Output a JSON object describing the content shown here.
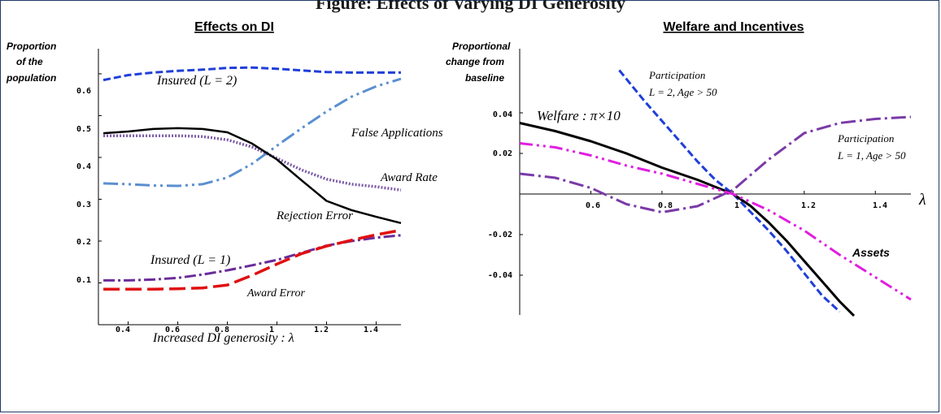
{
  "page_title": "Figure: Effects of Varying DI Generosity",
  "colors": {
    "insured_l2": "#1f3fd8",
    "false_applications": "#5b8fd0",
    "award_rate": "#7b5aa6",
    "rejection_error": "#000000",
    "insured_l1": "#6a2c9a",
    "award_error": "#e01010",
    "participation_l2": "#1f3fd8",
    "participation_l1": "#7a3aa8",
    "welfare": "#000000",
    "assets": "#e01ee0"
  },
  "chart_data": [
    {
      "type": "line",
      "title": "Effects on DI",
      "ylabel": [
        "Proportion",
        "of the",
        "population"
      ],
      "xlabel": "Increased DI generosity : λ",
      "xlim": [
        0.28,
        1.5
      ],
      "ylim": [
        0.0,
        0.66
      ],
      "xticks": [
        "0.4",
        "0.6",
        "0.8",
        "1",
        "1.2",
        "1.4"
      ],
      "yticks": [
        "0.1",
        "0.2",
        "0.3",
        "0.4",
        "0.5",
        "0.6"
      ],
      "x": [
        0.3,
        0.4,
        0.5,
        0.6,
        0.7,
        0.8,
        0.9,
        1.0,
        1.1,
        1.2,
        1.3,
        1.4,
        1.5
      ],
      "series": [
        {
          "key": "insured_l2",
          "label": "Insured (L = 2)",
          "dash": "9 4",
          "width": 3,
          "values": [
            0.585,
            0.597,
            0.603,
            0.607,
            0.61,
            0.614,
            0.615,
            0.612,
            0.608,
            0.604,
            0.603,
            0.603,
            0.603
          ]
        },
        {
          "key": "false_applications",
          "label": "False Applications",
          "dash": "18 5 3 5 3 5",
          "width": 3,
          "values": [
            0.338,
            0.336,
            0.333,
            0.332,
            0.336,
            0.352,
            0.385,
            0.428,
            0.47,
            0.51,
            0.545,
            0.57,
            0.588
          ]
        },
        {
          "key": "award_rate",
          "label": "Award Rate",
          "dash": "2 2",
          "width": 3.5,
          "values": [
            0.452,
            0.452,
            0.452,
            0.452,
            0.45,
            0.442,
            0.425,
            0.398,
            0.37,
            0.348,
            0.336,
            0.33,
            0.322
          ]
        },
        {
          "key": "rejection_error",
          "label": "Rejection Error",
          "dash": "none",
          "width": 2.5,
          "values": [
            0.458,
            0.462,
            0.468,
            0.47,
            0.468,
            0.46,
            0.433,
            0.395,
            0.345,
            0.296,
            0.274,
            0.258,
            0.243
          ]
        },
        {
          "key": "insured_l1",
          "label": "Insured (L = 1)",
          "dash": "14 4 3 4",
          "width": 3,
          "values": [
            0.106,
            0.106,
            0.108,
            0.112,
            0.12,
            0.13,
            0.142,
            0.155,
            0.172,
            0.189,
            0.2,
            0.208,
            0.214
          ]
        },
        {
          "key": "award_error",
          "label": "Award Error",
          "dash": "20 7",
          "width": 3.5,
          "values": [
            0.085,
            0.085,
            0.085,
            0.086,
            0.088,
            0.095,
            0.118,
            0.145,
            0.17,
            0.188,
            0.202,
            0.215,
            0.226
          ]
        }
      ]
    },
    {
      "type": "line",
      "title": "Welfare and Incentives",
      "ylabel": [
        "Proportional",
        "change from",
        "baseline"
      ],
      "xlabel": "λ",
      "xlim": [
        0.4,
        1.5
      ],
      "ylim": [
        -0.062,
        0.062
      ],
      "xticks": [
        "0.6",
        "0.8",
        "1",
        "1.2",
        "1.4"
      ],
      "yticks": [
        "0.04",
        "0.02",
        "-0.02",
        "-0.04"
      ],
      "series": [
        {
          "key": "participation_l2",
          "label": "Participation",
          "sublabel": "L = 2, Age > 50",
          "dash": "9 4",
          "width": 3,
          "x": [
            0.68,
            0.75,
            0.8,
            0.85,
            0.9,
            0.95,
            1.0,
            1.05,
            1.1,
            1.15,
            1.2,
            1.25,
            1.3
          ],
          "values": [
            0.061,
            0.046,
            0.036,
            0.026,
            0.016,
            0.007,
            0.0,
            -0.009,
            -0.018,
            -0.028,
            -0.039,
            -0.05,
            -0.058
          ]
        },
        {
          "key": "participation_l1",
          "label": "Participation",
          "sublabel": "L = 1, Age > 50",
          "dash": "18 5 3 5",
          "width": 3,
          "x": [
            0.4,
            0.5,
            0.6,
            0.7,
            0.8,
            0.9,
            1.0,
            1.1,
            1.2,
            1.3,
            1.4,
            1.5
          ],
          "values": [
            0.01,
            0.008,
            0.003,
            -0.005,
            -0.009,
            -0.006,
            0.002,
            0.017,
            0.03,
            0.035,
            0.037,
            0.038
          ]
        },
        {
          "key": "welfare",
          "label": "Welfare : π×10",
          "dash": "none",
          "width": 3,
          "x": [
            0.4,
            0.5,
            0.6,
            0.7,
            0.8,
            0.9,
            1.0,
            1.05,
            1.1,
            1.15,
            1.2,
            1.25,
            1.3,
            1.34
          ],
          "values": [
            0.035,
            0.031,
            0.026,
            0.02,
            0.013,
            0.007,
            0.0,
            -0.006,
            -0.014,
            -0.023,
            -0.033,
            -0.043,
            -0.053,
            -0.06
          ]
        },
        {
          "key": "assets",
          "label": "Assets",
          "dash": "16 5 3 5 3 5",
          "width": 3,
          "x": [
            0.4,
            0.5,
            0.6,
            0.7,
            0.8,
            0.9,
            1.0,
            1.1,
            1.2,
            1.3,
            1.4,
            1.5
          ],
          "values": [
            0.025,
            0.023,
            0.019,
            0.014,
            0.01,
            0.005,
            0.0,
            -0.008,
            -0.018,
            -0.03,
            -0.041,
            -0.052
          ]
        }
      ]
    }
  ]
}
